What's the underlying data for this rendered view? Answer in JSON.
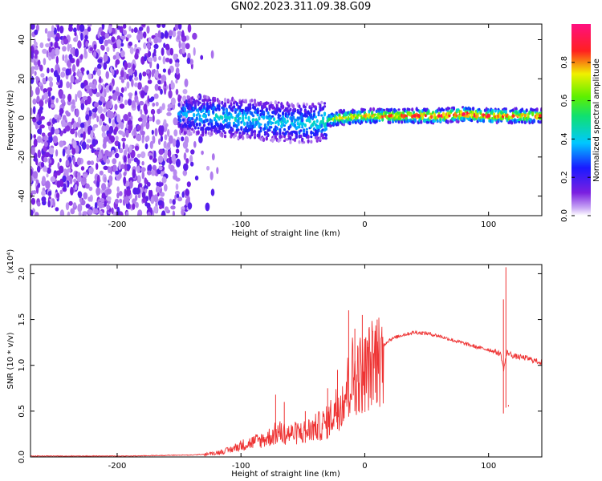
{
  "title": "GN02.2023.311.09.38.G09",
  "chart_data": [
    {
      "type": "heatmap",
      "xlabel": "Height of straight line (km)",
      "ylabel": "Frequency (Hz)",
      "xlim": [
        -270,
        143
      ],
      "ylim": [
        -50,
        48
      ],
      "xticks": [
        -200,
        -100,
        0,
        100
      ],
      "yticks": [
        -40,
        -20,
        0,
        20,
        40
      ],
      "colorbar": {
        "label": "Normalized spectral amplitude",
        "range": [
          0,
          1
        ],
        "ticks": [
          0.0,
          0.2,
          0.4,
          0.6,
          0.8
        ],
        "colormap": "rainbow (white-violet-blue-cyan-green-yellow-red-magenta)"
      },
      "ridge": [
        {
          "x": -150,
          "freq": 2,
          "amp": 0.35
        },
        {
          "x": -130,
          "freq": 1,
          "amp": 0.4
        },
        {
          "x": -110,
          "freq": 0,
          "amp": 0.42
        },
        {
          "x": -90,
          "freq": -1,
          "amp": 0.42
        },
        {
          "x": -70,
          "freq": -2,
          "amp": 0.4
        },
        {
          "x": -50,
          "freq": -3,
          "amp": 0.4
        },
        {
          "x": -35,
          "freq": -2,
          "amp": 0.45
        },
        {
          "x": -20,
          "freq": 0,
          "amp": 0.75
        },
        {
          "x": 0,
          "freq": 1,
          "amp": 0.8
        },
        {
          "x": 20,
          "freq": 1,
          "amp": 0.85
        },
        {
          "x": 40,
          "freq": 1,
          "amp": 0.9
        },
        {
          "x": 60,
          "freq": 1,
          "amp": 0.9
        },
        {
          "x": 80,
          "freq": 2,
          "amp": 0.95
        },
        {
          "x": 100,
          "freq": 1,
          "amp": 0.9
        },
        {
          "x": 120,
          "freq": 1,
          "amp": 0.85
        },
        {
          "x": 143,
          "freq": 1,
          "amp": 0.85
        }
      ]
    },
    {
      "type": "line",
      "xlabel": "Height of straight line (km)",
      "ylabel": "SNR (10 * v/v)",
      "scale_label": "(x10⁴)",
      "xlim": [
        -270,
        143
      ],
      "ylim": [
        0,
        2.1
      ],
      "xticks": [
        -200,
        -100,
        0,
        100
      ],
      "yticks": [
        0.0,
        0.5,
        1.0,
        1.5,
        2.0
      ],
      "series": [
        {
          "color": "#ee3333",
          "x": [
            -270,
            -250,
            -230,
            -210,
            -190,
            -170,
            -150,
            -140,
            -130,
            -120,
            -110,
            -100,
            -90,
            -80,
            -70,
            -60,
            -50,
            -40,
            -30,
            -25,
            -20,
            -15,
            -10,
            -5,
            0,
            5,
            10,
            15,
            20,
            30,
            40,
            50,
            60,
            70,
            80,
            90,
            100,
            105,
            110,
            112,
            115,
            118,
            120,
            130,
            143
          ],
          "y": [
            0.01,
            0.01,
            0.01,
            0.01,
            0.01,
            0.015,
            0.02,
            0.02,
            0.03,
            0.05,
            0.08,
            0.14,
            0.18,
            0.22,
            0.3,
            0.28,
            0.3,
            0.35,
            0.42,
            0.55,
            0.65,
            0.8,
            1.0,
            1.0,
            1.02,
            1.12,
            1.2,
            1.22,
            1.28,
            1.33,
            1.36,
            1.35,
            1.32,
            1.28,
            1.24,
            1.2,
            1.17,
            1.15,
            1.12,
            0.95,
            1.14,
            1.12,
            1.1,
            1.08,
            1.03
          ]
        }
      ],
      "spikes": [
        {
          "x": -72,
          "y": 0.68
        },
        {
          "x": -65,
          "y": 0.6
        },
        {
          "x": -48,
          "y": 0.5
        },
        {
          "x": -30,
          "y": 0.75
        },
        {
          "x": -22,
          "y": 0.95
        },
        {
          "x": -13,
          "y": 1.6
        },
        {
          "x": -8,
          "y": 1.4
        },
        {
          "x": -2,
          "y": 1.55
        },
        {
          "x": 3,
          "y": 1.2
        },
        {
          "x": 10,
          "y": 1.5
        },
        {
          "x": 112,
          "y": 1.72
        },
        {
          "x": 114,
          "y": 2.07
        },
        {
          "x": 116,
          "y": 0.55
        }
      ]
    }
  ]
}
